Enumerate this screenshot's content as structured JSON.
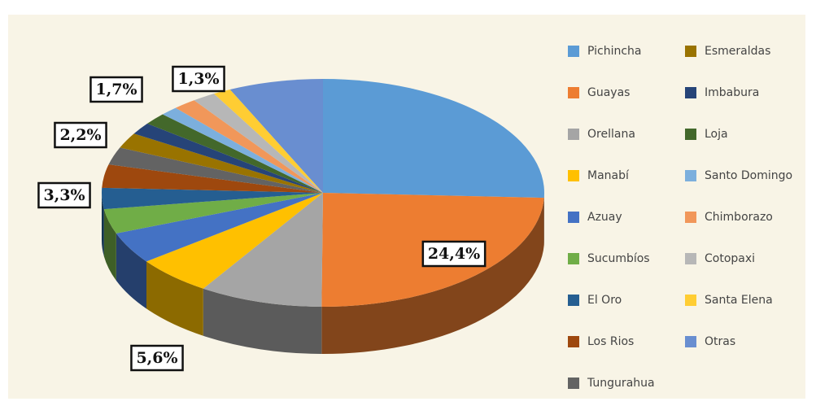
{
  "chart_data": {
    "type": "pie3d",
    "categories": [
      "Pichincha",
      "Guayas",
      "Orellana",
      "Manabí",
      "Azuay",
      "Sucumbíos",
      "El Oro",
      "Los Rios",
      "Tungurahua",
      "Esmeraldas",
      "Imbabura",
      "Loja",
      "Santo Domingo",
      "Chimborazo",
      "Cotopaxi",
      "Santa Elena",
      "Otras"
    ],
    "values": [
      25.7,
      24.4,
      9,
      5.6,
      4.5,
      3.5,
      3,
      3.3,
      2.5,
      2.2,
      1.7,
      1.7,
      1.3,
      1.7,
      1.7,
      1.3,
      6.9
    ],
    "value_labels": [
      null,
      "24,4%",
      null,
      "5,6%",
      null,
      null,
      null,
      "3,3%",
      null,
      "2,2%",
      "1,7%",
      null,
      null,
      null,
      null,
      "1,3%",
      null
    ],
    "colors": [
      "#5b9bd5",
      "#ed7d31",
      "#a5a5a5",
      "#ffc000",
      "#4472c4",
      "#70ad47",
      "#255e91",
      "#9e480e",
      "#636363",
      "#997300",
      "#264478",
      "#43682b",
      "#7cafdd",
      "#f1975a",
      "#b7b7b7",
      "#ffcd33",
      "#698ed0"
    ]
  }
}
